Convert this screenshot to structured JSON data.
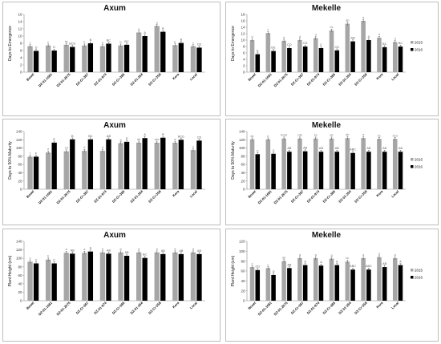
{
  "chart_data": [
    {
      "type": "bar",
      "title": "Axum",
      "ylabel": "Days to Emergence",
      "ylim": [
        0,
        16
      ],
      "yticks": [
        0,
        2,
        4,
        6,
        8,
        10,
        12,
        14,
        16
      ],
      "categories": [
        "Boset",
        "DZ-01-1681",
        "DZ-01-2675",
        "DZ-Cr-387",
        "DZ-01-974",
        "DZ-Cr-385",
        "DZ-01-354",
        "DZ-Cr-358",
        "Kora",
        "Local"
      ],
      "series": [
        {
          "name": "2015",
          "color": "#a6a6a6",
          "values": [
            7.2,
            7.4,
            7.6,
            7.4,
            7.2,
            7.4,
            11,
            12.8,
            7.5,
            7.2
          ],
          "labels": [
            "c",
            "c",
            "bc",
            "b",
            "b",
            "b",
            "a",
            "a",
            "b",
            "c"
          ]
        },
        {
          "name": "2016",
          "color": "#000000",
          "values": [
            5.9,
            6.0,
            7.0,
            8.0,
            7.9,
            7.6,
            10.0,
            11.2,
            8.1,
            6.8
          ],
          "labels": [
            "D",
            "D",
            "BCD",
            "B",
            "BC",
            "BC",
            "A",
            "A",
            "B",
            "CD"
          ]
        }
      ]
    },
    {
      "type": "bar",
      "title": "Mekelle",
      "ylabel": "Days to Emergence",
      "ylim": [
        0,
        18
      ],
      "yticks": [
        0,
        2,
        4,
        6,
        8,
        10,
        12,
        14,
        16,
        18
      ],
      "categories": [
        "Boset",
        "DZ-01-1681",
        "DZ-01-2675",
        "DZ-Cr-387",
        "DZ-01-974",
        "DZ-Cr-385",
        "DZ-01-354",
        "DZ-Cr-358",
        "Kora",
        "Local"
      ],
      "series": [
        {
          "name": "2015",
          "color": "#a6a6a6",
          "values": [
            10.0,
            12.2,
            9.8,
            10.0,
            10.6,
            13.0,
            15.1,
            16.0,
            10.7,
            9.4
          ],
          "labels": [
            "d",
            "c",
            "d",
            "d",
            "d",
            "bc",
            "ab",
            "a",
            "d",
            "d"
          ]
        },
        {
          "name": "2016",
          "color": "#000000",
          "values": [
            5.6,
            6.6,
            7.5,
            8.0,
            7.5,
            6.8,
            9.6,
            10.0,
            7.8,
            8.0
          ],
          "labels": [
            "E",
            "DE",
            "CD",
            "CD",
            "C",
            "CD",
            "AB",
            "A",
            "BC",
            "BC"
          ]
        }
      ]
    },
    {
      "type": "bar",
      "title": "Axum",
      "ylabel": "Days to 50% Maturity",
      "ylim": [
        0,
        140
      ],
      "yticks": [
        0,
        20,
        40,
        60,
        80,
        100,
        120,
        140
      ],
      "categories": [
        "Boset",
        "DZ-01-1681",
        "DZ-01-2675",
        "DZ-Cr-387",
        "DZ-01-974",
        "DZ-Cr-385",
        "DZ-01-354",
        "DZ-Cr-358",
        "Kora",
        "Local"
      ],
      "series": [
        {
          "name": "2015",
          "color": "#a6a6a6",
          "values": [
            79,
            89,
            92,
            93,
            93,
            112,
            113,
            113,
            113,
            95
          ],
          "labels": [
            "f",
            "e",
            "cd",
            "d",
            "d",
            "a",
            "ab",
            "abc",
            "a",
            "c"
          ]
        },
        {
          "name": "2016",
          "color": "#000000",
          "values": [
            79,
            113,
            121,
            121,
            121,
            115,
            124,
            125,
            120,
            118
          ],
          "labels": [
            "F",
            "E",
            "B",
            "BC",
            "AB",
            "D",
            "A",
            "A",
            "BCD",
            "CD"
          ]
        }
      ]
    },
    {
      "type": "bar",
      "title": "Mekelle",
      "ylabel": "Days to 50% Maturity",
      "ylim": [
        0,
        140
      ],
      "yticks": [
        0,
        20,
        40,
        60,
        80,
        100,
        120,
        140
      ],
      "categories": [
        "Boset",
        "DZ-01-1681",
        "DZ-01-2675",
        "DZ-Cr-387",
        "DZ-01-974",
        "DZ-Cr-385",
        "DZ-01-354",
        "DZ-Cr-358",
        "Kora",
        "Local"
      ],
      "series": [
        {
          "name": "2015",
          "color": "#a6a6a6",
          "values": [
            121,
            121,
            123,
            123,
            123,
            123,
            124,
            124,
            122,
            122
          ],
          "labels": [
            "de",
            "e",
            "bcde",
            "cde",
            "bc",
            "ab",
            "ab",
            "a",
            "bc",
            "bcd"
          ]
        },
        {
          "name": "2016",
          "color": "#000000",
          "values": [
            85,
            86,
            91,
            92,
            91,
            91,
            88,
            91,
            91,
            91
          ],
          "labels": [
            "C",
            "C",
            "AB",
            "AB",
            "AB",
            "AB",
            "ABC",
            "AB",
            "AB",
            "AB"
          ]
        }
      ]
    },
    {
      "type": "bar",
      "title": "Axum",
      "ylabel": "Plant Height (cm)",
      "ylim": [
        0,
        140
      ],
      "yticks": [
        0,
        20,
        40,
        60,
        80,
        100,
        120,
        140
      ],
      "categories": [
        "Boset",
        "DZ-01-1681",
        "DZ-01-2675",
        "DZ-Cr-387",
        "DZ-01-974",
        "DZ-Cr-385",
        "DZ-01-354",
        "DZ-Cr-358",
        "Kora",
        "Local"
      ],
      "series": [
        {
          "name": "2015",
          "color": "#a6a6a6",
          "values": [
            92,
            97,
            113,
            113,
            114,
            114,
            114,
            114,
            114,
            114
          ],
          "labels": [
            "b",
            "b",
            "a",
            "a",
            "a",
            "a",
            "a",
            "a",
            "a",
            "a"
          ]
        },
        {
          "name": "2016",
          "color": "#000000",
          "values": [
            88,
            88,
            111,
            116,
            111,
            106,
            101,
            110,
            110,
            110
          ],
          "labels": [
            "C",
            "C",
            "AB",
            "A",
            "AB",
            "AB",
            "BC",
            "AB",
            "AB",
            "AB"
          ]
        }
      ]
    },
    {
      "type": "bar",
      "title": "Mekelle",
      "ylabel": "Plant Height (cm)",
      "ylim": [
        0,
        120
      ],
      "yticks": [
        0,
        20,
        40,
        60,
        80,
        100,
        120
      ],
      "categories": [
        "Boset",
        "DZ-01-1681",
        "DZ-01-2675",
        "DZ-Cr-387",
        "DZ-01-974",
        "DZ-Cr-385",
        "DZ-01-354",
        "DZ-Cr-358",
        "Kora",
        "Local"
      ],
      "series": [
        {
          "name": "2015",
          "color": "#a6a6a6",
          "values": [
            68,
            66,
            80,
            86,
            86,
            85,
            79,
            86,
            88,
            86
          ],
          "labels": [
            "c",
            "c",
            "ab",
            "a",
            "a",
            "a",
            "bc",
            "a",
            "a",
            "a"
          ]
        },
        {
          "name": "2016",
          "color": "#000000",
          "values": [
            62,
            52,
            66,
            72,
            71,
            72,
            63,
            63,
            68,
            72
          ],
          "labels": [
            "CD",
            "D",
            "AB",
            "A",
            "A",
            "A",
            "ABC",
            "ABC",
            "AB",
            "A"
          ]
        }
      ]
    }
  ]
}
